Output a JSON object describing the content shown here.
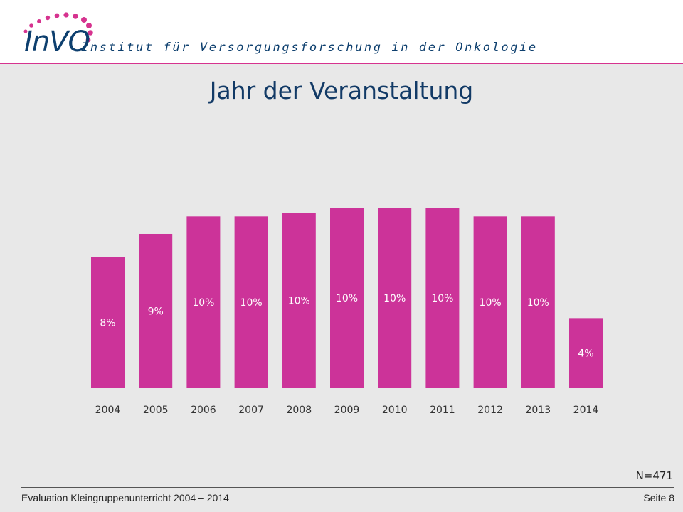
{
  "header": {
    "logo_text": "InVO",
    "institute_name": "Institut für Versorgungsforschung in der Onkologie",
    "accent_color": "#d6338f",
    "brand_color": "#0d3f6e"
  },
  "slide": {
    "title": "Jahr der Veranstaltung",
    "sample_size": "N=471"
  },
  "footer": {
    "left_text": "Evaluation Kleingruppenunterricht 2004 – 2014",
    "page_label": "Seite 8"
  },
  "chart_data": {
    "type": "bar",
    "categories": [
      "2004",
      "2005",
      "2006",
      "2007",
      "2008",
      "2009",
      "2010",
      "2011",
      "2012",
      "2013",
      "2014"
    ],
    "values": [
      7.5,
      8.8,
      9.8,
      9.8,
      10.0,
      10.3,
      10.3,
      10.3,
      9.8,
      9.8,
      4.0
    ],
    "data_labels": [
      "8%",
      "9%",
      "10%",
      "10%",
      "10%",
      "10%",
      "10%",
      "10%",
      "10%",
      "10%",
      "4%"
    ],
    "bar_color": "#cc3399",
    "label_color": "#ffffff",
    "title": "Jahr der Veranstaltung",
    "xlabel": "",
    "ylabel": "",
    "ylim": [
      0,
      10.3
    ],
    "grid": false,
    "legend": "none"
  }
}
